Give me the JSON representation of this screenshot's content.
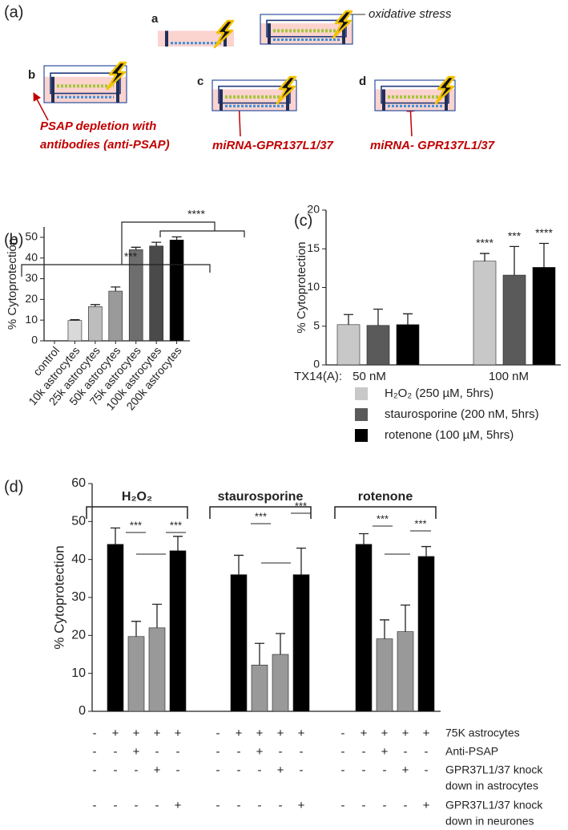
{
  "diagram": {
    "panel": "(a)",
    "labels": [
      "a",
      "b",
      "c",
      "d"
    ],
    "oxidative_stress": "oxidative stress",
    "annotations": [
      "PSAP depletion with",
      "antibodies  (anti-PSAP)",
      "miRNA-GPR137L1/37",
      "miRNA- GPR137L1/37"
    ]
  },
  "chart_data": [
    {
      "panel": "(b)",
      "type": "bar",
      "y_label": "% Cytoprotection",
      "categories": [
        "control",
        "10k astrocytes",
        "25k astrocytes",
        "50k astrocytes",
        "75k astrocytes",
        "100k astrocytes",
        "200k astrocytes"
      ],
      "values": [
        0,
        9.8,
        16.5,
        24,
        44,
        45.8,
        48.7
      ],
      "errors": [
        null,
        0.4,
        1,
        2,
        1.2,
        1.8,
        1.5
      ],
      "colors": [
        "#d9d9d9",
        "#d9d9d9",
        "#bdbdbd",
        "#9a9a9a",
        "#6e6e6e",
        "#4a4a4a",
        "#000000"
      ],
      "ylim": [
        0,
        55
      ],
      "yticks": [
        0,
        10,
        20,
        30,
        40,
        50
      ],
      "annotations": [
        "***",
        "****"
      ]
    },
    {
      "panel": "(c)",
      "type": "grouped_bar",
      "y_label": "% Cytoprotection",
      "x_label": "TX14(A):",
      "categories": [
        "50 nM",
        "100 nM"
      ],
      "series": [
        {
          "name": "H₂O₂ (250 µM, 5hrs)",
          "color": "#c8c8c8",
          "values": [
            5.2,
            13.4
          ],
          "errors": [
            1.3,
            1.0
          ],
          "significance": [
            null,
            "****"
          ]
        },
        {
          "name": "staurosporine (200 nM, 5hrs)",
          "color": "#5a5a5a",
          "values": [
            5.1,
            11.6
          ],
          "errors": [
            2.1,
            3.7
          ],
          "significance": [
            null,
            "***"
          ]
        },
        {
          "name": "rotenone (100 µM, 5hrs)",
          "color": "#000000",
          "values": [
            5.2,
            12.6
          ],
          "errors": [
            1.4,
            3.1
          ],
          "significance": [
            null,
            "****"
          ]
        }
      ],
      "ylim": [
        0,
        20
      ],
      "yticks": [
        0,
        5,
        10,
        15,
        20
      ]
    },
    {
      "panel": "(d)",
      "type": "bar_groups",
      "y_label": "% Cytoprotection",
      "groups": [
        {
          "name": "H₂O₂",
          "values": [
            0,
            44,
            19.7,
            22,
            42.3
          ],
          "errors": [
            null,
            4.3,
            4,
            6.2,
            3.8
          ],
          "significance": [
            "***",
            "***"
          ]
        },
        {
          "name": "staurosporine",
          "values": [
            0,
            36,
            12.2,
            15,
            36
          ],
          "errors": [
            null,
            5.1,
            5.7,
            5.5,
            7
          ],
          "significance": [
            "***",
            "***"
          ]
        },
        {
          "name": "rotenone",
          "values": [
            0,
            44,
            19.1,
            21,
            40.8
          ],
          "errors": [
            null,
            2.8,
            5,
            7,
            2.6
          ],
          "significance": [
            "***",
            "***"
          ]
        }
      ],
      "colors": [
        "#000000",
        "#000000",
        "#999999",
        "#999999",
        "#000000"
      ],
      "ylim": [
        0,
        60
      ],
      "yticks": [
        0,
        10,
        20,
        30,
        40,
        50,
        60
      ],
      "conditions": [
        {
          "label": [
            "75K astrocytes"
          ],
          "signs": [
            "-",
            "+",
            "+",
            "+",
            "+",
            "-",
            "+",
            "+",
            "+",
            "+",
            "-",
            "+",
            "+",
            "+",
            "+"
          ]
        },
        {
          "label": [
            "Anti-PSAP"
          ],
          "signs": [
            "-",
            "-",
            "+",
            "-",
            "-",
            "-",
            "-",
            "+",
            "-",
            "-",
            "-",
            "-",
            "+",
            "-",
            "-"
          ]
        },
        {
          "label": [
            "GPR37L1/37 knock",
            "down in astrocytes"
          ],
          "signs": [
            "-",
            "-",
            "-",
            "+",
            "-",
            "-",
            "-",
            "-",
            "+",
            "-",
            "-",
            "-",
            "-",
            "+",
            "-"
          ]
        },
        {
          "label": [
            "GPR37L1/37 knock",
            "down in neurones"
          ],
          "signs": [
            "-",
            "-",
            "-",
            "-",
            "+",
            "-",
            "-",
            "-",
            "-",
            "+",
            "-",
            "-",
            "-",
            "-",
            "+"
          ]
        }
      ]
    }
  ]
}
